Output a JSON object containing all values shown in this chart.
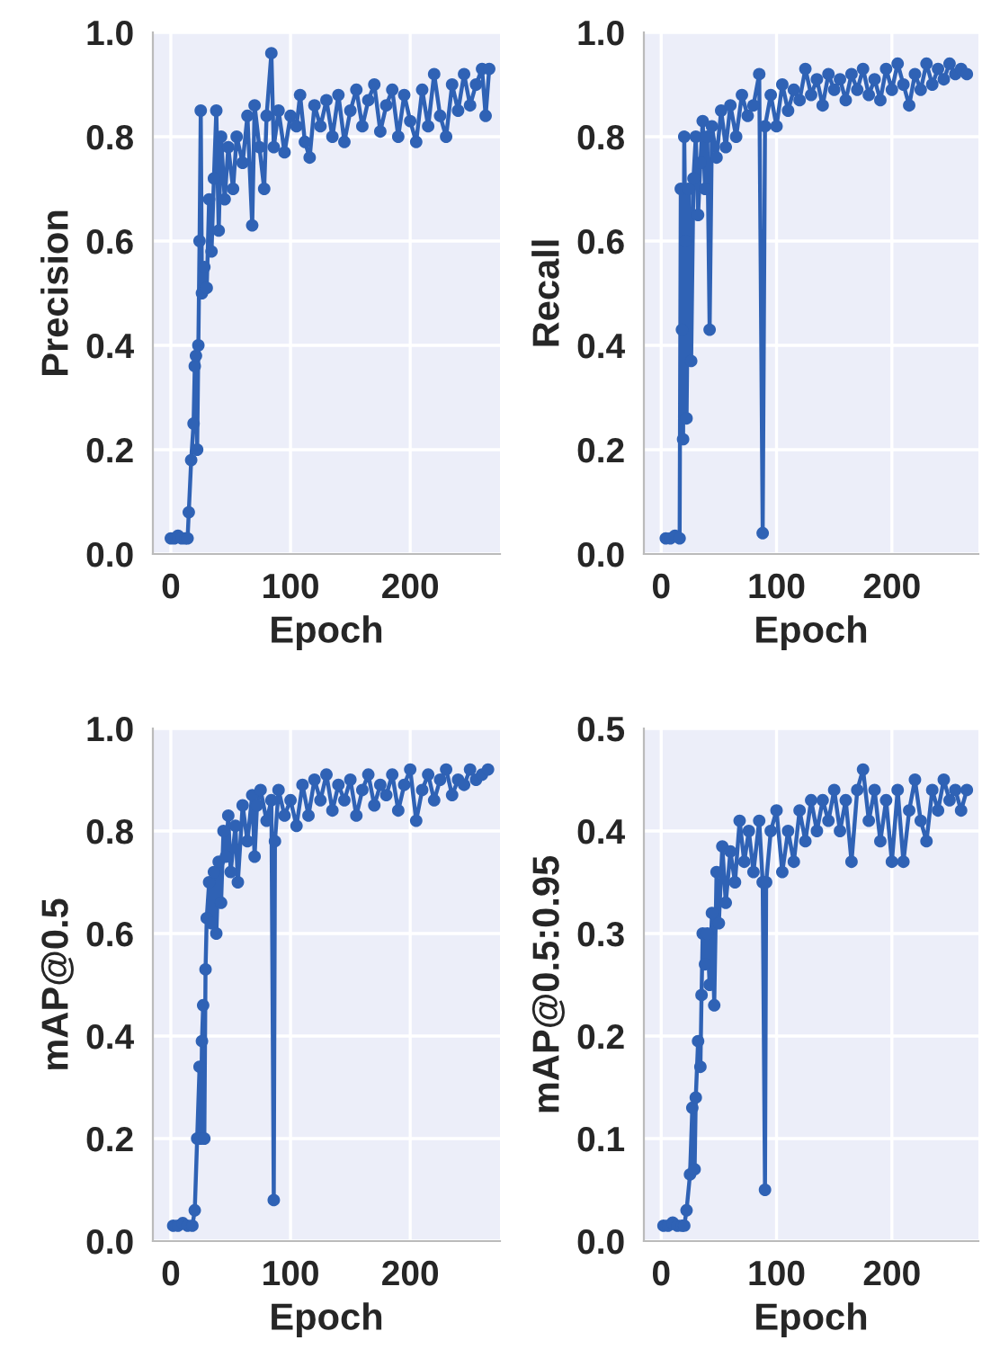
{
  "chart_data": [
    {
      "type": "line",
      "xlabel": "Epoch",
      "ylabel": "Precision",
      "grid": true,
      "marker": "circle",
      "line_style": "solid",
      "xlim": [
        -15,
        275
      ],
      "ylim": [
        0,
        1.0
      ],
      "xticks": [
        0,
        100,
        200
      ],
      "yticks": [
        {
          "value": 0,
          "label": "0.0"
        },
        {
          "value": 0.2,
          "label": "0.2"
        },
        {
          "value": 0.4,
          "label": "0.4"
        },
        {
          "value": 0.6,
          "label": "0.6"
        },
        {
          "value": 0.8,
          "label": "0.8"
        },
        {
          "value": 1.0,
          "label": "1.0"
        }
      ],
      "series": [
        {
          "color": "#2f62b5",
          "x": [
            0,
            3,
            6,
            9,
            12,
            14,
            15,
            17,
            19,
            20,
            21,
            22,
            23,
            24,
            25,
            26,
            28,
            30,
            32,
            34,
            36,
            38,
            40,
            42,
            45,
            48,
            52,
            55,
            60,
            64,
            68,
            70,
            74,
            78,
            80,
            84,
            86,
            90,
            95,
            100,
            105,
            108,
            112,
            116,
            120,
            125,
            130,
            135,
            140,
            145,
            150,
            155,
            160,
            165,
            170,
            175,
            180,
            185,
            190,
            195,
            200,
            205,
            210,
            215,
            220,
            225,
            230,
            235,
            240,
            245,
            250,
            255,
            260,
            263,
            266
          ],
          "values": [
            0.03,
            0.03,
            0.035,
            0.03,
            0.03,
            0.03,
            0.08,
            0.18,
            0.25,
            0.36,
            0.38,
            0.2,
            0.4,
            0.6,
            0.85,
            0.5,
            0.55,
            0.51,
            0.68,
            0.58,
            0.72,
            0.85,
            0.62,
            0.8,
            0.68,
            0.78,
            0.7,
            0.8,
            0.75,
            0.84,
            0.63,
            0.86,
            0.78,
            0.7,
            0.84,
            0.96,
            0.78,
            0.85,
            0.77,
            0.84,
            0.82,
            0.88,
            0.79,
            0.76,
            0.86,
            0.82,
            0.87,
            0.8,
            0.88,
            0.79,
            0.85,
            0.89,
            0.82,
            0.87,
            0.9,
            0.81,
            0.86,
            0.89,
            0.8,
            0.88,
            0.83,
            0.79,
            0.89,
            0.82,
            0.92,
            0.84,
            0.8,
            0.9,
            0.85,
            0.92,
            0.86,
            0.9,
            0.93,
            0.84,
            0.93
          ]
        }
      ]
    },
    {
      "type": "line",
      "xlabel": "Epoch",
      "ylabel": "Recall",
      "grid": true,
      "marker": "circle",
      "line_style": "solid",
      "xlim": [
        -15,
        275
      ],
      "ylim": [
        0,
        1.0
      ],
      "xticks": [
        0,
        100,
        200
      ],
      "yticks": [
        {
          "value": 0,
          "label": "0.0"
        },
        {
          "value": 0.2,
          "label": "0.2"
        },
        {
          "value": 0.4,
          "label": "0.4"
        },
        {
          "value": 0.6,
          "label": "0.6"
        },
        {
          "value": 0.8,
          "label": "0.8"
        },
        {
          "value": 1.0,
          "label": "1.0"
        }
      ],
      "series": [
        {
          "color": "#2f62b5",
          "x": [
            4,
            8,
            12,
            16,
            17,
            18,
            19,
            20,
            21,
            22,
            24,
            26,
            28,
            30,
            32,
            34,
            36,
            38,
            40,
            42,
            44,
            48,
            52,
            56,
            60,
            65,
            70,
            75,
            80,
            85,
            88,
            90,
            95,
            100,
            105,
            110,
            115,
            120,
            125,
            130,
            135,
            140,
            145,
            150,
            155,
            160,
            165,
            170,
            175,
            180,
            185,
            190,
            195,
            200,
            205,
            210,
            215,
            220,
            225,
            230,
            235,
            240,
            245,
            250,
            255,
            260,
            265
          ],
          "values": [
            0.03,
            0.03,
            0.035,
            0.03,
            0.7,
            0.43,
            0.22,
            0.8,
            0.6,
            0.26,
            0.7,
            0.37,
            0.72,
            0.8,
            0.65,
            0.75,
            0.83,
            0.7,
            0.8,
            0.43,
            0.82,
            0.76,
            0.85,
            0.78,
            0.86,
            0.8,
            0.88,
            0.84,
            0.86,
            0.92,
            0.04,
            0.82,
            0.88,
            0.82,
            0.9,
            0.85,
            0.89,
            0.87,
            0.93,
            0.88,
            0.91,
            0.86,
            0.92,
            0.89,
            0.91,
            0.87,
            0.92,
            0.89,
            0.93,
            0.88,
            0.91,
            0.87,
            0.93,
            0.89,
            0.94,
            0.9,
            0.86,
            0.92,
            0.89,
            0.94,
            0.9,
            0.93,
            0.91,
            0.94,
            0.92,
            0.93,
            0.92
          ]
        }
      ]
    },
    {
      "type": "line",
      "xlabel": "Epoch",
      "ylabel": "mAP@0.5",
      "grid": true,
      "marker": "circle",
      "line_style": "solid",
      "xlim": [
        -15,
        275
      ],
      "ylim": [
        0,
        1.0
      ],
      "xticks": [
        0,
        100,
        200
      ],
      "yticks": [
        {
          "value": 0,
          "label": "0.0"
        },
        {
          "value": 0.2,
          "label": "0.2"
        },
        {
          "value": 0.4,
          "label": "0.4"
        },
        {
          "value": 0.6,
          "label": "0.6"
        },
        {
          "value": 0.8,
          "label": "0.8"
        },
        {
          "value": 1.0,
          "label": "1.0"
        }
      ],
      "series": [
        {
          "color": "#2f62b5",
          "x": [
            2,
            6,
            10,
            14,
            18,
            20,
            22,
            24,
            25,
            26,
            27,
            28,
            29,
            30,
            32,
            34,
            36,
            38,
            40,
            42,
            44,
            46,
            48,
            50,
            54,
            56,
            60,
            64,
            68,
            70,
            72,
            75,
            80,
            84,
            86,
            87,
            90,
            95,
            100,
            105,
            110,
            115,
            120,
            125,
            130,
            135,
            140,
            145,
            150,
            155,
            160,
            165,
            170,
            175,
            180,
            185,
            190,
            195,
            200,
            205,
            210,
            215,
            220,
            225,
            230,
            235,
            240,
            245,
            250,
            255,
            260,
            265
          ],
          "values": [
            0.03,
            0.03,
            0.035,
            0.03,
            0.03,
            0.06,
            0.2,
            0.34,
            0.2,
            0.39,
            0.46,
            0.2,
            0.53,
            0.63,
            0.7,
            0.62,
            0.72,
            0.6,
            0.74,
            0.66,
            0.8,
            0.75,
            0.83,
            0.72,
            0.81,
            0.7,
            0.85,
            0.78,
            0.87,
            0.75,
            0.85,
            0.88,
            0.82,
            0.86,
            0.08,
            0.78,
            0.88,
            0.83,
            0.86,
            0.81,
            0.89,
            0.83,
            0.9,
            0.86,
            0.91,
            0.84,
            0.89,
            0.86,
            0.9,
            0.83,
            0.88,
            0.91,
            0.85,
            0.89,
            0.87,
            0.91,
            0.84,
            0.89,
            0.92,
            0.82,
            0.88,
            0.91,
            0.86,
            0.9,
            0.92,
            0.87,
            0.9,
            0.89,
            0.92,
            0.9,
            0.91,
            0.92
          ]
        }
      ]
    },
    {
      "type": "line",
      "xlabel": "Epoch",
      "ylabel": "mAP@0.5:0.95",
      "grid": true,
      "marker": "circle",
      "line_style": "solid",
      "xlim": [
        -15,
        275
      ],
      "ylim": [
        0,
        0.5
      ],
      "xticks": [
        0,
        100,
        200
      ],
      "yticks": [
        {
          "value": 0,
          "label": "0.0"
        },
        {
          "value": 0.1,
          "label": "0.1"
        },
        {
          "value": 0.2,
          "label": "0.2"
        },
        {
          "value": 0.3,
          "label": "0.3"
        },
        {
          "value": 0.4,
          "label": "0.4"
        },
        {
          "value": 0.5,
          "label": "0.5"
        }
      ],
      "series": [
        {
          "color": "#2f62b5",
          "x": [
            2,
            6,
            10,
            14,
            18,
            20,
            22,
            25,
            27,
            29,
            30,
            32,
            34,
            35,
            36,
            38,
            40,
            42,
            44,
            46,
            48,
            50,
            53,
            56,
            60,
            64,
            68,
            72,
            76,
            80,
            85,
            88,
            90,
            91,
            95,
            100,
            105,
            110,
            115,
            120,
            125,
            130,
            135,
            140,
            145,
            150,
            155,
            160,
            165,
            170,
            175,
            180,
            185,
            190,
            195,
            200,
            205,
            210,
            215,
            220,
            225,
            230,
            235,
            240,
            245,
            250,
            255,
            260,
            265
          ],
          "values": [
            0.015,
            0.015,
            0.018,
            0.015,
            0.015,
            0.015,
            0.03,
            0.065,
            0.13,
            0.07,
            0.14,
            0.195,
            0.17,
            0.24,
            0.3,
            0.27,
            0.3,
            0.25,
            0.32,
            0.23,
            0.36,
            0.31,
            0.385,
            0.33,
            0.38,
            0.35,
            0.41,
            0.37,
            0.4,
            0.36,
            0.41,
            0.35,
            0.05,
            0.35,
            0.4,
            0.42,
            0.36,
            0.4,
            0.37,
            0.42,
            0.39,
            0.43,
            0.4,
            0.43,
            0.41,
            0.44,
            0.4,
            0.43,
            0.37,
            0.44,
            0.46,
            0.41,
            0.44,
            0.39,
            0.43,
            0.37,
            0.44,
            0.37,
            0.42,
            0.45,
            0.41,
            0.39,
            0.44,
            0.42,
            0.45,
            0.43,
            0.44,
            0.42,
            0.44
          ]
        }
      ]
    }
  ]
}
